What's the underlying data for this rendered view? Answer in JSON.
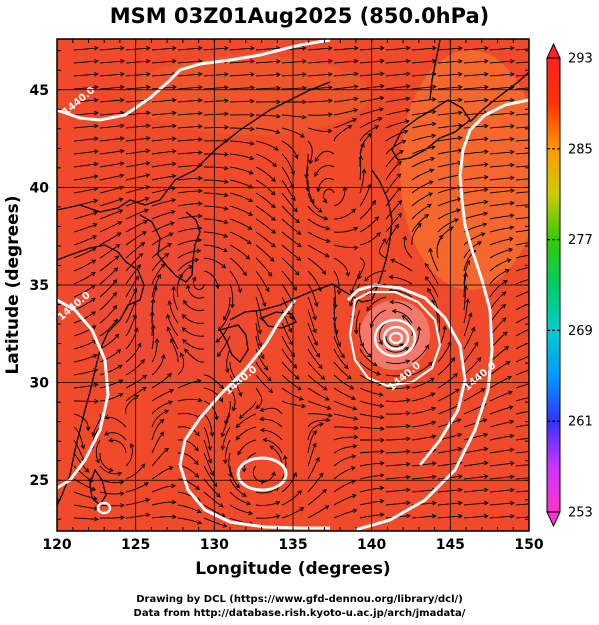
{
  "title": "MSM 03Z01Aug2025 (850.0hPa)",
  "axes": {
    "xlabel": "Longitude (degrees)",
    "ylabel": "Latitude  (degrees)",
    "xlim": [
      120,
      150
    ],
    "ylim": [
      22.4,
      47.6
    ],
    "xticks": [
      120,
      125,
      130,
      135,
      140,
      145,
      150
    ],
    "yticks": [
      25,
      30,
      35,
      40,
      45
    ],
    "grid": true
  },
  "colorbar": {
    "min": 253,
    "max": 293,
    "labels": [
      293,
      285,
      277,
      269,
      261,
      253
    ],
    "stops": [
      "#ff33cc",
      "#cc33ff",
      "#3333ff",
      "#0099ff",
      "#00cccc",
      "#00cc66",
      "#33cc00",
      "#cccc00",
      "#ff9900",
      "#ff3300",
      "#ff2222"
    ]
  },
  "colors": {
    "field_base": "#f04a2a",
    "field_warm": "#f56a2c",
    "field_cool": "#e83a30",
    "coast": "#000000",
    "contour": "#ffffff",
    "streamline": "#000000"
  },
  "contour_labels": [
    {
      "text": "1440.0",
      "lon": 121.5,
      "lat": 44.3
    },
    {
      "text": "1440.0",
      "lon": 121.2,
      "lat": 33.8
    },
    {
      "text": "1440.0",
      "lon": 131.8,
      "lat": 30.0
    },
    {
      "text": "1440.0",
      "lon": 142.2,
      "lat": 30.2
    },
    {
      "text": "1440.0",
      "lon": 147.0,
      "lat": 30.2
    }
  ],
  "credits": {
    "line1": "Drawing by DCL (https://www.gfd-dennou.org/library/dcl/)",
    "line2": "Data from http://database.rish.kyoto-u.ac.jp/arch/jmadata/"
  }
}
